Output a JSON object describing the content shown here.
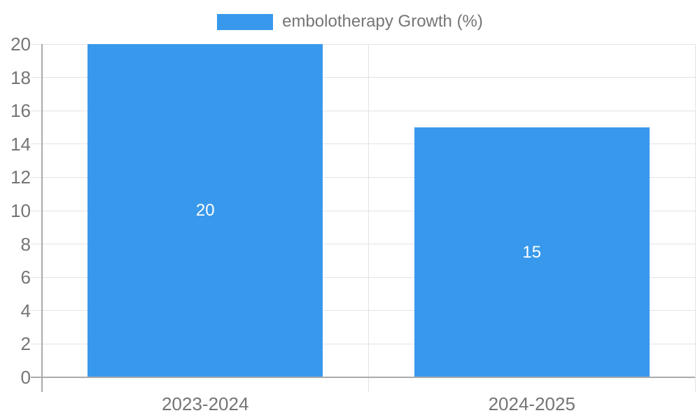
{
  "chart_data": {
    "type": "bar",
    "title": "",
    "legend": {
      "label": "embolotherapy Growth (%)",
      "position": "top"
    },
    "categories": [
      "2023-2024",
      "2024-2025"
    ],
    "values": [
      20,
      15
    ],
    "value_labels": [
      "20",
      "15"
    ],
    "xlabel": "",
    "ylabel": "",
    "ylim": [
      0,
      20
    ],
    "ytick_step": 2,
    "ytick_labels": [
      "0",
      "2",
      "4",
      "6",
      "8",
      "10",
      "12",
      "14",
      "16",
      "18",
      "20"
    ],
    "grid": true,
    "legend_interactive": true,
    "colors": {
      "bar": "#3899ec",
      "value_label": "#ffffff",
      "grid": "#e3e3e3",
      "axis": "#aaaaaa",
      "tick_label": "#757575",
      "legend_text": "#757575",
      "background": "#ffffff"
    }
  }
}
